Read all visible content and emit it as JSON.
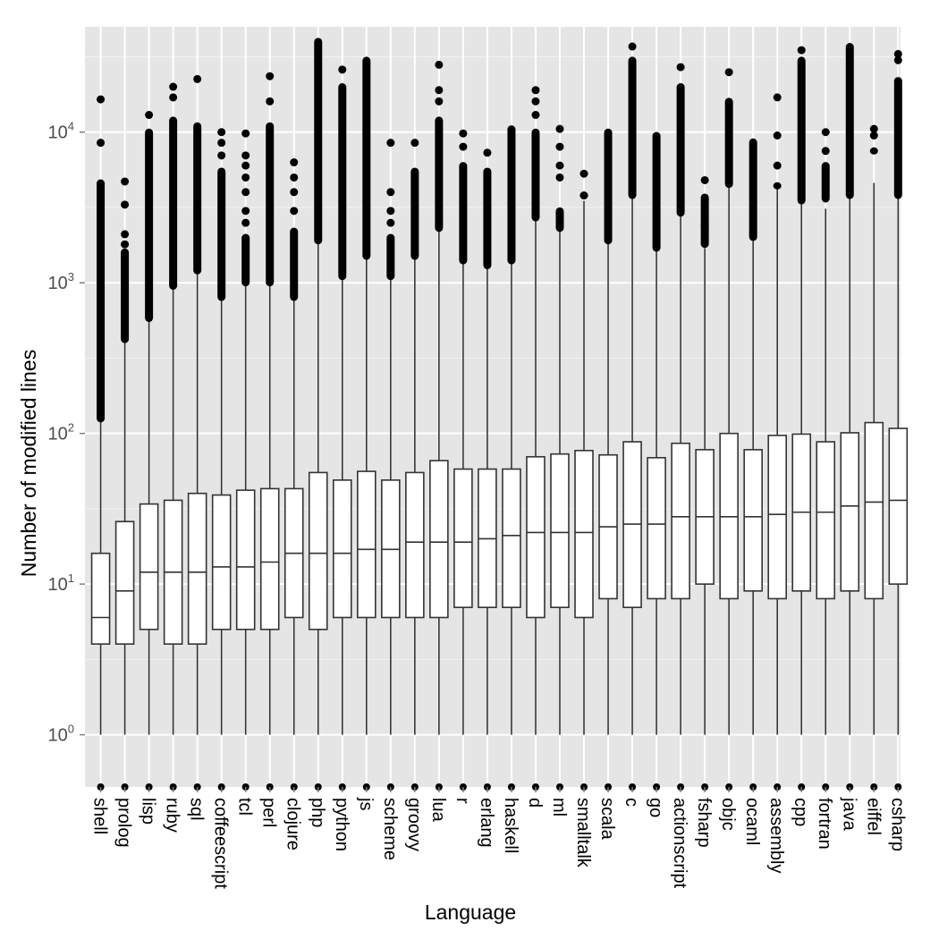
{
  "chart_data": {
    "type": "boxplot",
    "xlabel": "Language",
    "ylabel": "Number of modified lines",
    "y_scale": "log10",
    "ylim": [
      0.45,
      50000
    ],
    "y_ticks": [
      {
        "value": 1,
        "base": "10",
        "exp": "0"
      },
      {
        "value": 10,
        "base": "10",
        "exp": "1"
      },
      {
        "value": 100,
        "base": "10",
        "exp": "2"
      },
      {
        "value": 1000,
        "base": "10",
        "exp": "3"
      },
      {
        "value": 10000,
        "base": "10",
        "exp": "4"
      }
    ],
    "grid": true,
    "colors": {
      "panel": "#e5e5e5",
      "grid": "#ffffff",
      "box_fill": "#ffffff",
      "box_line": "#333333",
      "outlier": "#000000"
    },
    "categories": [
      "shell",
      "prolog",
      "lisp",
      "ruby",
      "sql",
      "coffeescript",
      "tcl",
      "perl",
      "clojure",
      "php",
      "python",
      "js",
      "scheme",
      "groovy",
      "lua",
      "r",
      "erlang",
      "haskell",
      "d",
      "ml",
      "smalltalk",
      "scala",
      "c",
      "go",
      "actionscript",
      "fsharp",
      "objc",
      "ocaml",
      "assembly",
      "cpp",
      "fortran",
      "java",
      "eiffel",
      "csharp"
    ],
    "boxes": [
      {
        "q1": 4,
        "median": 6,
        "q3": 16,
        "whisker_high": 125,
        "outlier_dense_low": 125,
        "outlier_dense_high": 4600,
        "outliers": [
          8500,
          16500
        ]
      },
      {
        "q1": 4,
        "median": 9,
        "q3": 26,
        "whisker_high": 420,
        "outlier_dense_low": 420,
        "outlier_dense_high": 1600,
        "outliers": [
          1800,
          2100,
          3300,
          4700
        ]
      },
      {
        "q1": 5,
        "median": 12,
        "q3": 34,
        "whisker_high": 580,
        "outlier_dense_low": 580,
        "outlier_dense_high": 10000,
        "outliers": [
          13000
        ]
      },
      {
        "q1": 4,
        "median": 12,
        "q3": 36,
        "whisker_high": 950,
        "outlier_dense_low": 950,
        "outlier_dense_high": 12000,
        "outliers": [
          17000,
          20000
        ]
      },
      {
        "q1": 4,
        "median": 12,
        "q3": 40,
        "whisker_high": 1200,
        "outlier_dense_low": 1200,
        "outlier_dense_high": 11000,
        "outliers": [
          22500
        ]
      },
      {
        "q1": 5,
        "median": 13,
        "q3": 39,
        "whisker_high": 800,
        "outlier_dense_low": 800,
        "outlier_dense_high": 5500,
        "outliers": [
          7000,
          8500,
          10000
        ]
      },
      {
        "q1": 5,
        "median": 13,
        "q3": 42,
        "whisker_high": 1000,
        "outlier_dense_low": 1000,
        "outlier_dense_high": 2000,
        "outliers": [
          2500,
          3000,
          4000,
          5000,
          6000,
          7000,
          9800
        ]
      },
      {
        "q1": 5,
        "median": 14,
        "q3": 43,
        "whisker_high": 1000,
        "outlier_dense_low": 1000,
        "outlier_dense_high": 11000,
        "outliers": [
          16000,
          23500
        ]
      },
      {
        "q1": 6,
        "median": 16,
        "q3": 43,
        "whisker_high": 800,
        "outlier_dense_low": 800,
        "outlier_dense_high": 2200,
        "outliers": [
          3000,
          4000,
          5000,
          6300
        ]
      },
      {
        "q1": 5,
        "median": 16,
        "q3": 55,
        "whisker_high": 1900,
        "outlier_dense_low": 1900,
        "outlier_dense_high": 40000,
        "outliers": []
      },
      {
        "q1": 6,
        "median": 16,
        "q3": 49,
        "whisker_high": 1100,
        "outlier_dense_low": 1100,
        "outlier_dense_high": 20000,
        "outliers": [
          26000
        ]
      },
      {
        "q1": 6,
        "median": 17,
        "q3": 56,
        "whisker_high": 1500,
        "outlier_dense_low": 1500,
        "outlier_dense_high": 30000,
        "outliers": []
      },
      {
        "q1": 6,
        "median": 17,
        "q3": 49,
        "whisker_high": 1100,
        "outlier_dense_low": 1100,
        "outlier_dense_high": 2000,
        "outliers": [
          2500,
          3000,
          4000,
          8500
        ]
      },
      {
        "q1": 6,
        "median": 19,
        "q3": 55,
        "whisker_high": 1500,
        "outlier_dense_low": 1500,
        "outlier_dense_high": 5500,
        "outliers": [
          8500
        ]
      },
      {
        "q1": 6,
        "median": 19,
        "q3": 66,
        "whisker_high": 2300,
        "outlier_dense_low": 2300,
        "outlier_dense_high": 12000,
        "outliers": [
          16000,
          19000,
          28000
        ]
      },
      {
        "q1": 7,
        "median": 19,
        "q3": 58,
        "whisker_high": 1400,
        "outlier_dense_low": 1400,
        "outlier_dense_high": 6000,
        "outliers": [
          8000,
          9800
        ]
      },
      {
        "q1": 7,
        "median": 20,
        "q3": 58,
        "whisker_high": 1300,
        "outlier_dense_low": 1300,
        "outlier_dense_high": 5500,
        "outliers": [
          7300
        ]
      },
      {
        "q1": 7,
        "median": 21,
        "q3": 58,
        "whisker_high": 1400,
        "outlier_dense_low": 1400,
        "outlier_dense_high": 10500,
        "outliers": []
      },
      {
        "q1": 6,
        "median": 22,
        "q3": 70,
        "whisker_high": 2700,
        "outlier_dense_low": 2700,
        "outlier_dense_high": 10000,
        "outliers": [
          13000,
          16000,
          19000
        ]
      },
      {
        "q1": 7,
        "median": 22,
        "q3": 73,
        "whisker_high": 2300,
        "outlier_dense_low": 2300,
        "outlier_dense_high": 3000,
        "outliers": [
          5000,
          6000,
          8000,
          10500
        ]
      },
      {
        "q1": 6,
        "median": 22,
        "q3": 77,
        "whisker_high": 3500,
        "outlier_dense_low": 3800,
        "outlier_dense_high": 3800,
        "outliers": [
          3800,
          5300
        ]
      },
      {
        "q1": 8,
        "median": 24,
        "q3": 72,
        "whisker_high": 1900,
        "outlier_dense_low": 1900,
        "outlier_dense_high": 10000,
        "outliers": []
      },
      {
        "q1": 7,
        "median": 25,
        "q3": 88,
        "whisker_high": 3800,
        "outlier_dense_low": 3800,
        "outlier_dense_high": 30000,
        "outliers": [
          37000
        ]
      },
      {
        "q1": 8,
        "median": 25,
        "q3": 69,
        "whisker_high": 1700,
        "outlier_dense_low": 1700,
        "outlier_dense_high": 9500,
        "outliers": []
      },
      {
        "q1": 8,
        "median": 28,
        "q3": 86,
        "whisker_high": 2900,
        "outlier_dense_low": 2900,
        "outlier_dense_high": 20000,
        "outliers": [
          27000
        ]
      },
      {
        "q1": 10,
        "median": 28,
        "q3": 78,
        "whisker_high": 1700,
        "outlier_dense_low": 1800,
        "outlier_dense_high": 3700,
        "outliers": [
          2400,
          4800
        ]
      },
      {
        "q1": 8,
        "median": 28,
        "q3": 100,
        "whisker_high": 4500,
        "outlier_dense_low": 4500,
        "outlier_dense_high": 16000,
        "outliers": [
          25000
        ]
      },
      {
        "q1": 9,
        "median": 28,
        "q3": 78,
        "whisker_high": 2000,
        "outlier_dense_low": 2000,
        "outlier_dense_high": 8600,
        "outliers": []
      },
      {
        "q1": 8,
        "median": 29,
        "q3": 97,
        "whisker_high": 4200,
        "outlier_dense_low": 4400,
        "outlier_dense_high": 4400,
        "outliers": [
          6000,
          9500,
          17000
        ]
      },
      {
        "q1": 9,
        "median": 30,
        "q3": 99,
        "whisker_high": 3500,
        "outlier_dense_low": 3500,
        "outlier_dense_high": 30000,
        "outliers": [
          35000
        ]
      },
      {
        "q1": 8,
        "median": 30,
        "q3": 88,
        "whisker_high": 3100,
        "outlier_dense_low": 3600,
        "outlier_dense_high": 6000,
        "outliers": [
          7500,
          10000
        ]
      },
      {
        "q1": 9,
        "median": 33,
        "q3": 101,
        "whisker_high": 3800,
        "outlier_dense_low": 3800,
        "outlier_dense_high": 37000,
        "outliers": []
      },
      {
        "q1": 8,
        "median": 35,
        "q3": 118,
        "whisker_high": 4600,
        "outlier_dense_low": 7500,
        "outlier_dense_high": 7500,
        "outliers": [
          9500,
          10500
        ]
      },
      {
        "q1": 10,
        "median": 36,
        "q3": 108,
        "whisker_high": 3800,
        "outlier_dense_low": 3800,
        "outlier_dense_high": 22000,
        "outliers": [
          30000,
          33000
        ]
      }
    ]
  }
}
